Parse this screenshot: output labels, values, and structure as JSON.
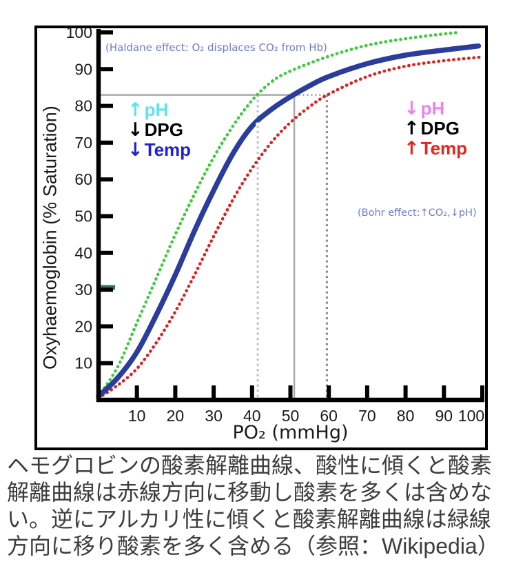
{
  "figure": {
    "background": "#ffffff",
    "frame_color": "#000000"
  },
  "chart_data": {
    "type": "line",
    "xlabel": "PO₂ (mmHg)",
    "ylabel": "Oxyhaemoglobin (% Saturation)",
    "xlim": [
      0,
      100
    ],
    "ylim": [
      0,
      100
    ],
    "x_ticks": [
      10,
      20,
      30,
      40,
      50,
      60,
      70,
      80,
      90,
      100
    ],
    "y_ticks": [
      10,
      20,
      30,
      40,
      50,
      60,
      70,
      80,
      90,
      100
    ],
    "grid": false,
    "legend": "none",
    "series": [
      {
        "name": "left-shifted curve (alkaline: up pH, down DPG, down Temp)",
        "color": "#3ecc3e",
        "line_style": "dotted",
        "x": [
          0,
          5,
          10,
          15,
          20,
          25,
          30,
          35,
          40,
          45,
          50,
          60,
          70,
          80,
          90,
          94
        ],
        "values": [
          1,
          9,
          21,
          33,
          45,
          56,
          66,
          74.5,
          81.5,
          86.5,
          89.5,
          93.5,
          96.5,
          98.3,
          99.6,
          100
        ]
      },
      {
        "name": "normal oxygen dissociation curve",
        "color": "#2b3d9c",
        "line_style": "solid",
        "x": [
          0,
          5,
          10,
          15,
          20,
          25,
          30,
          35,
          40,
          45,
          50,
          55,
          60,
          70,
          80,
          90,
          99
        ],
        "values": [
          1,
          6,
          13,
          23,
          34,
          46,
          57,
          67,
          74.5,
          79,
          82.5,
          85.5,
          88,
          91.5,
          93.8,
          95.2,
          96.3
        ]
      },
      {
        "name": "right-shifted curve (acidic: down pH, up DPG, up Temp)",
        "color": "#dd2222",
        "line_style": "dotted",
        "x": [
          0,
          5,
          10,
          15,
          20,
          25,
          30,
          35,
          40,
          45,
          50,
          55,
          60,
          70,
          80,
          90,
          100
        ],
        "values": [
          0.5,
          4,
          8.5,
          15.5,
          24,
          34,
          44.5,
          54.5,
          63,
          70,
          75.5,
          79.8,
          83.2,
          88,
          90.8,
          92.3,
          93.3
        ]
      }
    ],
    "reference_lines": {
      "saturation_level": 83,
      "horizontal": {
        "solid_to_x": 51,
        "dotted_to_x": 59.5,
        "color": "#a9a9a9"
      },
      "verticals": [
        {
          "x": 41.5,
          "style": "dotted",
          "color": "#c0c0c0"
        },
        {
          "x": 51,
          "style": "solid",
          "color": "#a9a9a9"
        },
        {
          "x": 59.5,
          "style": "dotted",
          "color": "#8c8c8c"
        }
      ],
      "marker_dot": {
        "x": 41.5,
        "y": 75
      }
    },
    "axis_green_tick": {
      "y": 30.6,
      "color": "#2e7d52"
    },
    "annotations": {
      "haldane": {
        "text": "(Haldane effect: O₂ displaces CO₂ from Hb)",
        "color": "#6b7ad6"
      },
      "bohr": {
        "text": "(Bohr effect:↑CO₂,↓pH)",
        "color": "#6b7ad6"
      },
      "left_shift": {
        "items": [
          {
            "arrow": "↑",
            "label": "pH",
            "color": "#5ce4ea"
          },
          {
            "arrow": "↓",
            "label": "DPG",
            "color": "#000000"
          },
          {
            "arrow": "↓",
            "label": "Temp",
            "color": "#1f1fd6"
          }
        ]
      },
      "right_shift": {
        "items": [
          {
            "arrow": "↓",
            "label": "pH",
            "color": "#ee82ee"
          },
          {
            "arrow": "↑",
            "label": "DPG",
            "color": "#000000"
          },
          {
            "arrow": "↑",
            "label": "Temp",
            "color": "#e8241c"
          }
        ]
      }
    }
  },
  "caption": {
    "text": "ヘモグロビンの酸素解離曲線、酸性に傾くと酸素解離曲線は赤線方向に移動し酸素を多くは含めない。逆にアルカリ性に傾くと酸素解離曲線は緑線方向に移り酸素を多く含める（参照：Wikipedia）"
  }
}
